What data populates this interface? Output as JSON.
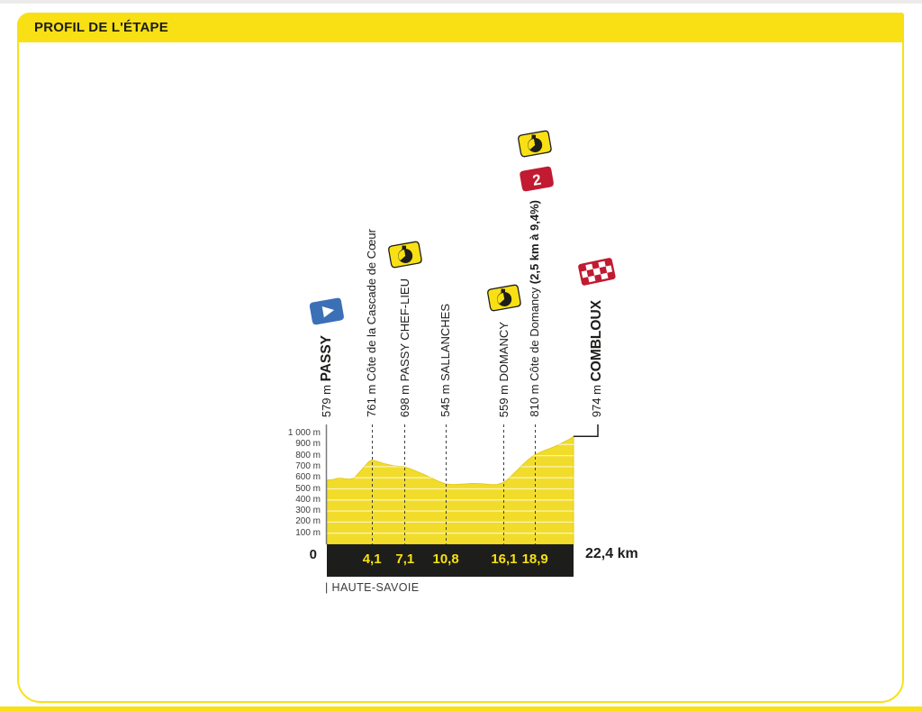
{
  "header": {
    "title": "PROFIL DE L'ÉTAPE"
  },
  "footer": {
    "region_label": "| HAUTE-SAVOIE"
  },
  "colors": {
    "brand_yellow": "#F8E014",
    "profile_yellow": "#F2DC2B",
    "profile_edge": "#E3CB1E",
    "grid_line": "#FFFFFF",
    "bar_black": "#1D1D1B",
    "badge_red": "#C11A31",
    "flag_blue": "#3B70B7",
    "text_dark": "#1D1D1B",
    "axis_gray": "#7A7A7A"
  },
  "chart_data": {
    "type": "area",
    "title": "Profil de l'étape",
    "start": "PASSY",
    "finish": "COMBLOUX",
    "x_unit": "km",
    "y_unit": "m",
    "xlim": [
      0,
      22.4
    ],
    "ylim": [
      0,
      1000
    ],
    "grid": "horizontal every 100 m",
    "origin_label": "0",
    "end_label": "22,4 km",
    "y_ticks": [
      {
        "value": 1000,
        "label": "1 000 m"
      },
      {
        "value": 900,
        "label": "900 m"
      },
      {
        "value": 800,
        "label": "800 m"
      },
      {
        "value": 700,
        "label": "700 m"
      },
      {
        "value": 600,
        "label": "600 m"
      },
      {
        "value": 500,
        "label": "500 m"
      },
      {
        "value": 400,
        "label": "400 m"
      },
      {
        "value": 300,
        "label": "300 m"
      },
      {
        "value": 200,
        "label": "200 m"
      },
      {
        "value": 100,
        "label": "100 m"
      }
    ],
    "km_ticks": [
      {
        "value": 4.1,
        "label": "4,1"
      },
      {
        "value": 7.1,
        "label": "7,1"
      },
      {
        "value": 10.8,
        "label": "10,8"
      },
      {
        "value": 16.1,
        "label": "16,1"
      },
      {
        "value": 18.9,
        "label": "18,9"
      }
    ],
    "profile": [
      [
        0,
        579
      ],
      [
        0.5,
        583
      ],
      [
        1.1,
        600
      ],
      [
        1.6,
        592
      ],
      [
        2.1,
        588
      ],
      [
        2.5,
        598
      ],
      [
        2.9,
        645
      ],
      [
        3.4,
        700
      ],
      [
        3.8,
        745
      ],
      [
        4.1,
        761
      ],
      [
        4.5,
        750
      ],
      [
        5.2,
        728
      ],
      [
        6.1,
        707
      ],
      [
        6.6,
        703
      ],
      [
        7.1,
        698
      ],
      [
        7.9,
        668
      ],
      [
        8.7,
        636
      ],
      [
        9.5,
        598
      ],
      [
        10.2,
        566
      ],
      [
        10.8,
        545
      ],
      [
        11.5,
        539
      ],
      [
        12.3,
        543
      ],
      [
        13.2,
        549
      ],
      [
        14.0,
        546
      ],
      [
        14.8,
        540
      ],
      [
        15.4,
        538
      ],
      [
        16.1,
        559
      ],
      [
        16.6,
        600
      ],
      [
        17.1,
        650
      ],
      [
        17.7,
        710
      ],
      [
        18.3,
        764
      ],
      [
        18.9,
        810
      ],
      [
        19.6,
        840
      ],
      [
        20.3,
        866
      ],
      [
        21.0,
        896
      ],
      [
        21.7,
        932
      ],
      [
        22.1,
        952
      ],
      [
        22.4,
        974
      ]
    ],
    "waypoints": [
      {
        "km": 0,
        "elevation_label": "579 m",
        "name": "PASSY",
        "name_bold": true,
        "icons": [
          "start-flag"
        ]
      },
      {
        "km": 4.1,
        "elevation_label": "761 m",
        "name": "Côte de la Cascade de Cœur",
        "icons": []
      },
      {
        "km": 7.1,
        "elevation_label": "698 m",
        "name": "PASSY CHEF-LIEU",
        "icons": [
          "bonus-sprint"
        ]
      },
      {
        "km": 10.8,
        "elevation_label": "545 m",
        "name": "SALLANCHES",
        "icons": []
      },
      {
        "km": 16.1,
        "elevation_label": "559 m",
        "name": "DOMANCY",
        "icons": [
          "bonus-sprint"
        ]
      },
      {
        "km": 18.9,
        "elevation_label": "810 m",
        "name": "Côte de Domancy",
        "suffix_bold": " (2,5 km à 9,4%)",
        "icons": [
          "bonus-sprint",
          "category-2"
        ],
        "category_label": "2"
      },
      {
        "km": 22.4,
        "elevation_label": "974 m",
        "name": "COMBLOUX",
        "name_bold": true,
        "icons": [
          "finish-flag"
        ],
        "label_x_offset": 26,
        "callout": true
      }
    ]
  }
}
